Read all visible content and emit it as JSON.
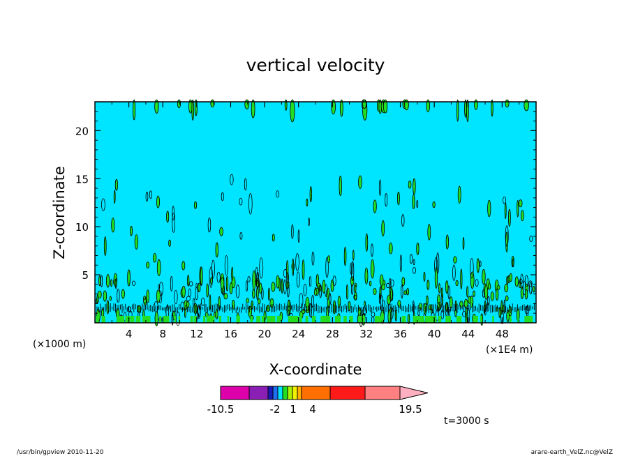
{
  "chart_data": {
    "type": "heatmap",
    "title": "vertical velocity",
    "xlabel": "X-coordinate",
    "ylabel": "Z-coordinate",
    "x_unit_left": "(×1000 m)",
    "x_unit_right": "(×1E4 m)",
    "xlim": [
      0,
      52
    ],
    "ylim": [
      0,
      23
    ],
    "x_ticks": [
      4,
      8,
      12,
      16,
      20,
      24,
      28,
      32,
      36,
      40,
      44,
      48
    ],
    "y_ticks": [
      5,
      10,
      15,
      20
    ],
    "background_level_color": "#00e5ff",
    "updraft_color": "#22dd22",
    "colorbar": {
      "levels": [
        {
          "color": "#dd00aa"
        },
        {
          "color": "#8a1fb5"
        },
        {
          "color": "#1a1ab5"
        },
        {
          "color": "#1e70f0"
        },
        {
          "color": "#00e5ff"
        },
        {
          "color": "#22dd22"
        },
        {
          "color": "#aaf000"
        },
        {
          "color": "#f0f000"
        },
        {
          "color": "#ffb000"
        },
        {
          "color": "#ff7000"
        },
        {
          "color": "#ff1a1a"
        },
        {
          "color": "#ff8080"
        },
        {
          "color": "#ffb0c0"
        }
      ],
      "tick_labels": [
        "-10.5",
        "-2",
        "1",
        "4",
        "19.5"
      ]
    },
    "time_label": "t=3000 s"
  },
  "footer": {
    "left": "/usr/bin/gpview   2010-11-20",
    "right": "arare-earth_VelZ.nc@VelZ"
  }
}
